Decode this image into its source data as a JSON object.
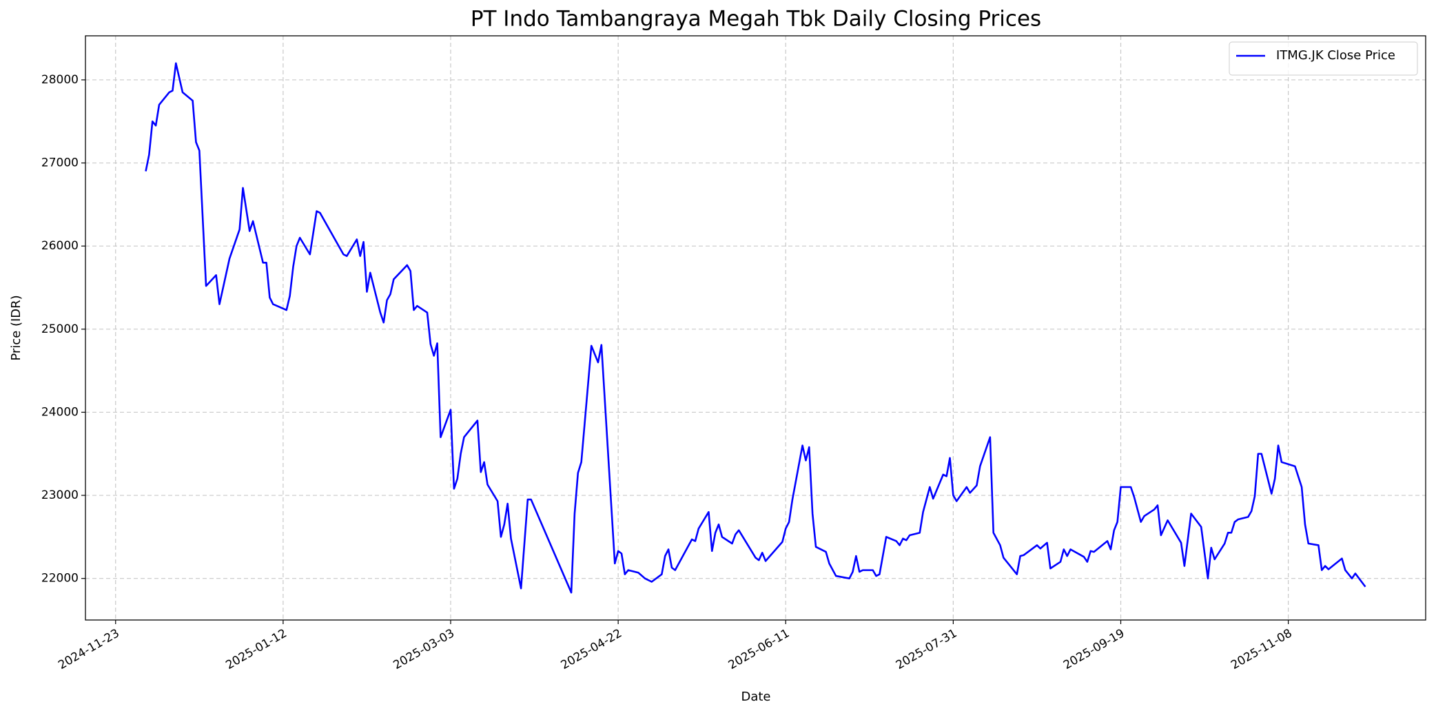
{
  "chart_data": {
    "type": "line",
    "title": "PT Indo Tambangraya Megah Tbk Daily Closing Prices",
    "x_label": "Date",
    "y_label": "Price (IDR)",
    "x": [
      "2024-12-02",
      "2024-12-03",
      "2024-12-04",
      "2024-12-05",
      "2024-12-06",
      "2024-12-09",
      "2024-12-10",
      "2024-12-11",
      "2024-12-13",
      "2024-12-16",
      "2024-12-17",
      "2024-12-18",
      "2024-12-20",
      "2024-12-23",
      "2024-12-24",
      "2024-12-27",
      "2024-12-30",
      "2024-12-31",
      "2025-01-02",
      "2025-01-03",
      "2025-01-06",
      "2025-01-07",
      "2025-01-08",
      "2025-01-09",
      "2025-01-13",
      "2025-01-14",
      "2025-01-15",
      "2025-01-16",
      "2025-01-17",
      "2025-01-20",
      "2025-01-22",
      "2025-01-23",
      "2025-01-30",
      "2025-01-31",
      "2025-02-03",
      "2025-02-04",
      "2025-02-05",
      "2025-02-06",
      "2025-02-07",
      "2025-02-10",
      "2025-02-11",
      "2025-02-12",
      "2025-02-13",
      "2025-02-14",
      "2025-02-18",
      "2025-02-19",
      "2025-02-20",
      "2025-02-21",
      "2025-02-24",
      "2025-02-25",
      "2025-02-26",
      "2025-02-27",
      "2025-02-28",
      "2025-03-03",
      "2025-03-04",
      "2025-03-05",
      "2025-03-06",
      "2025-03-07",
      "2025-03-11",
      "2025-03-12",
      "2025-03-13",
      "2025-03-14",
      "2025-03-17",
      "2025-03-18",
      "2025-03-19",
      "2025-03-20",
      "2025-03-21",
      "2025-03-24",
      "2025-03-26",
      "2025-03-27",
      "2025-04-08",
      "2025-04-09",
      "2025-04-10",
      "2025-04-11",
      "2025-04-14",
      "2025-04-16",
      "2025-04-17",
      "2025-04-21",
      "2025-04-22",
      "2025-04-23",
      "2025-04-24",
      "2025-04-25",
      "2025-04-28",
      "2025-04-30",
      "2025-05-02",
      "2025-05-05",
      "2025-05-06",
      "2025-05-07",
      "2025-05-08",
      "2025-05-09",
      "2025-05-14",
      "2025-05-15",
      "2025-05-16",
      "2025-05-19",
      "2025-05-20",
      "2025-05-21",
      "2025-05-22",
      "2025-05-23",
      "2025-05-26",
      "2025-05-27",
      "2025-05-28",
      "2025-06-02",
      "2025-06-03",
      "2025-06-04",
      "2025-06-05",
      "2025-06-10",
      "2025-06-11",
      "2025-06-12",
      "2025-06-13",
      "2025-06-16",
      "2025-06-17",
      "2025-06-18",
      "2025-06-19",
      "2025-06-20",
      "2025-06-23",
      "2025-06-24",
      "2025-06-26",
      "2025-06-30",
      "2025-07-01",
      "2025-07-02",
      "2025-07-03",
      "2025-07-04",
      "2025-07-07",
      "2025-07-08",
      "2025-07-09",
      "2025-07-11",
      "2025-07-14",
      "2025-07-15",
      "2025-07-16",
      "2025-07-17",
      "2025-07-18",
      "2025-07-21",
      "2025-07-22",
      "2025-07-24",
      "2025-07-25",
      "2025-07-28",
      "2025-07-29",
      "2025-07-30",
      "2025-07-31",
      "2025-08-01",
      "2025-08-04",
      "2025-08-05",
      "2025-08-07",
      "2025-08-08",
      "2025-08-11",
      "2025-08-12",
      "2025-08-14",
      "2025-08-15",
      "2025-08-19",
      "2025-08-20",
      "2025-08-21",
      "2025-08-25",
      "2025-08-26",
      "2025-08-28",
      "2025-08-29",
      "2025-09-01",
      "2025-09-02",
      "2025-09-03",
      "2025-09-04",
      "2025-09-08",
      "2025-09-09",
      "2025-09-10",
      "2025-09-11",
      "2025-09-15",
      "2025-09-16",
      "2025-09-17",
      "2025-09-18",
      "2025-09-19",
      "2025-09-22",
      "2025-09-23",
      "2025-09-25",
      "2025-09-26",
      "2025-09-29",
      "2025-09-30",
      "2025-10-01",
      "2025-10-03",
      "2025-10-07",
      "2025-10-08",
      "2025-10-10",
      "2025-10-13",
      "2025-10-15",
      "2025-10-16",
      "2025-10-17",
      "2025-10-20",
      "2025-10-21",
      "2025-10-22",
      "2025-10-23",
      "2025-10-24",
      "2025-10-27",
      "2025-10-28",
      "2025-10-29",
      "2025-10-30",
      "2025-10-31",
      "2025-11-03",
      "2025-11-04",
      "2025-11-05",
      "2025-11-06",
      "2025-11-10",
      "2025-11-12",
      "2025-11-13",
      "2025-11-14",
      "2025-11-17",
      "2025-11-18",
      "2025-11-19",
      "2025-11-20",
      "2025-11-24",
      "2025-11-25",
      "2025-11-27",
      "2025-11-28",
      "2025-12-01"
    ],
    "series": [
      {
        "name": "ITMG.JK Close Price",
        "color": "#0000ff",
        "values": [
          26900,
          27100,
          27500,
          27450,
          27700,
          27850,
          27870,
          28200,
          27850,
          27750,
          27250,
          27150,
          25520,
          25650,
          25300,
          25850,
          26200,
          26700,
          26180,
          26300,
          25800,
          25800,
          25380,
          25300,
          25230,
          25400,
          25750,
          26000,
          26100,
          25900,
          26420,
          26400,
          25900,
          25880,
          26080,
          25880,
          26050,
          25450,
          25680,
          25200,
          25080,
          25350,
          25420,
          25600,
          25770,
          25700,
          25230,
          25280,
          25200,
          24820,
          24680,
          24830,
          23700,
          24030,
          23080,
          23200,
          23500,
          23700,
          23900,
          23280,
          23400,
          23130,
          22930,
          22500,
          22650,
          22900,
          22480,
          21880,
          22950,
          22950,
          21830,
          22780,
          23270,
          23400,
          24800,
          24600,
          24810,
          22180,
          22330,
          22300,
          22050,
          22100,
          22070,
          22000,
          21960,
          22050,
          22270,
          22350,
          22130,
          22100,
          22470,
          22450,
          22600,
          22800,
          22330,
          22550,
          22650,
          22500,
          22420,
          22530,
          22580,
          22250,
          22220,
          22310,
          22210,
          22440,
          22600,
          22680,
          22950,
          23600,
          23420,
          23580,
          22780,
          22380,
          22320,
          22180,
          22030,
          22000,
          22080,
          22270,
          22080,
          22100,
          22100,
          22030,
          22050,
          22500,
          22450,
          22400,
          22480,
          22460,
          22520,
          22550,
          22800,
          23100,
          22960,
          23250,
          23230,
          23450,
          23000,
          22930,
          23100,
          23030,
          23120,
          23350,
          23700,
          22550,
          22400,
          22250,
          22050,
          22270,
          22280,
          22400,
          22360,
          22430,
          22120,
          22200,
          22350,
          22270,
          22350,
          22260,
          22200,
          22330,
          22320,
          22450,
          22350,
          22580,
          22680,
          23100,
          23100,
          22980,
          22680,
          22750,
          22830,
          22880,
          22520,
          22700,
          22430,
          22150,
          22780,
          22620,
          22000,
          22370,
          22230,
          22420,
          22550,
          22550,
          22680,
          22710,
          22740,
          22810,
          22990,
          23500,
          23500,
          23020,
          23200,
          23600,
          23400,
          23350,
          23100,
          22650,
          22420,
          22400,
          22100,
          22150,
          22110,
          22240,
          22100,
          22000,
          22060,
          21900
        ]
      }
    ],
    "xlim": [
      "2024-11-14",
      "2025-12-19"
    ],
    "xticks": [
      "2024-11-23",
      "2025-01-12",
      "2025-03-03",
      "2025-04-22",
      "2025-06-11",
      "2025-07-31",
      "2025-09-19",
      "2025-11-08"
    ],
    "ylim": [
      21500,
      28530
    ],
    "yticks": [
      22000,
      23000,
      24000,
      25000,
      26000,
      27000,
      28000
    ],
    "grid": true,
    "legend": "upper right"
  }
}
